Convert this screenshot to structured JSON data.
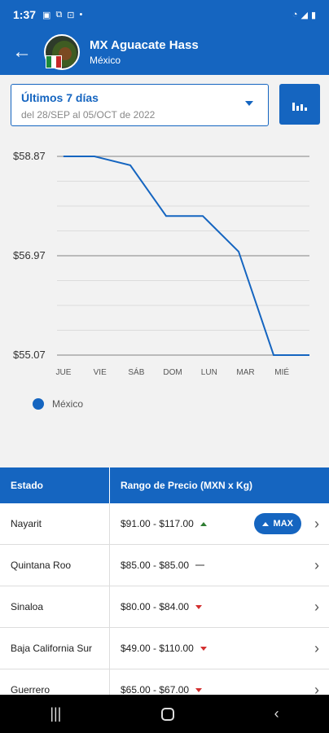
{
  "status_bar": {
    "time": "1:37",
    "left_icons": [
      "gallery-icon",
      "cast-icon",
      "screenshot-icon",
      "dot-icon"
    ],
    "right_icons": [
      "wifi-icon",
      "signal-icon",
      "battery-icon"
    ]
  },
  "header": {
    "title": "MX Aguacate Hass",
    "subtitle": "México"
  },
  "period": {
    "title": "Últimos 7 días",
    "range": "del 28/SEP al 05/OCT de 2022"
  },
  "colors": {
    "primary": "#1565c0",
    "up": "#2e7d32",
    "down": "#d32f2f"
  },
  "chart_data": {
    "type": "line",
    "categories": [
      "JUE",
      "VIE",
      "SÁB",
      "DOM",
      "LUN",
      "MAR",
      "MIÉ"
    ],
    "series": [
      {
        "name": "México",
        "values": [
          58.87,
          58.87,
          58.7,
          57.73,
          57.73,
          57.05,
          55.07
        ]
      }
    ],
    "y_ticks": [
      "$58.87",
      "$56.97",
      "$55.07"
    ],
    "ylim": [
      55.07,
      58.87
    ],
    "legend": "bottom-left",
    "grid": true
  },
  "table": {
    "headers": [
      "Estado",
      "Rango de Precio (MXN x Kg)"
    ],
    "rows": [
      {
        "estado": "Nayarit",
        "rango": "$91.00 - $117.00",
        "trend": "up",
        "badge": "MAX"
      },
      {
        "estado": "Quintana Roo",
        "rango": "$85.00 - $85.00",
        "trend": "flat",
        "badge": ""
      },
      {
        "estado": "Sinaloa",
        "rango": "$80.00 - $84.00",
        "trend": "down",
        "badge": ""
      },
      {
        "estado": "Baja California Sur",
        "rango": "$49.00 - $110.00",
        "trend": "down",
        "badge": ""
      },
      {
        "estado": "Guerrero",
        "rango": "$65.00 - $67.00",
        "trend": "down",
        "badge": ""
      }
    ]
  },
  "nav_icons": [
    "recent-apps-icon",
    "home-icon",
    "back-icon"
  ]
}
